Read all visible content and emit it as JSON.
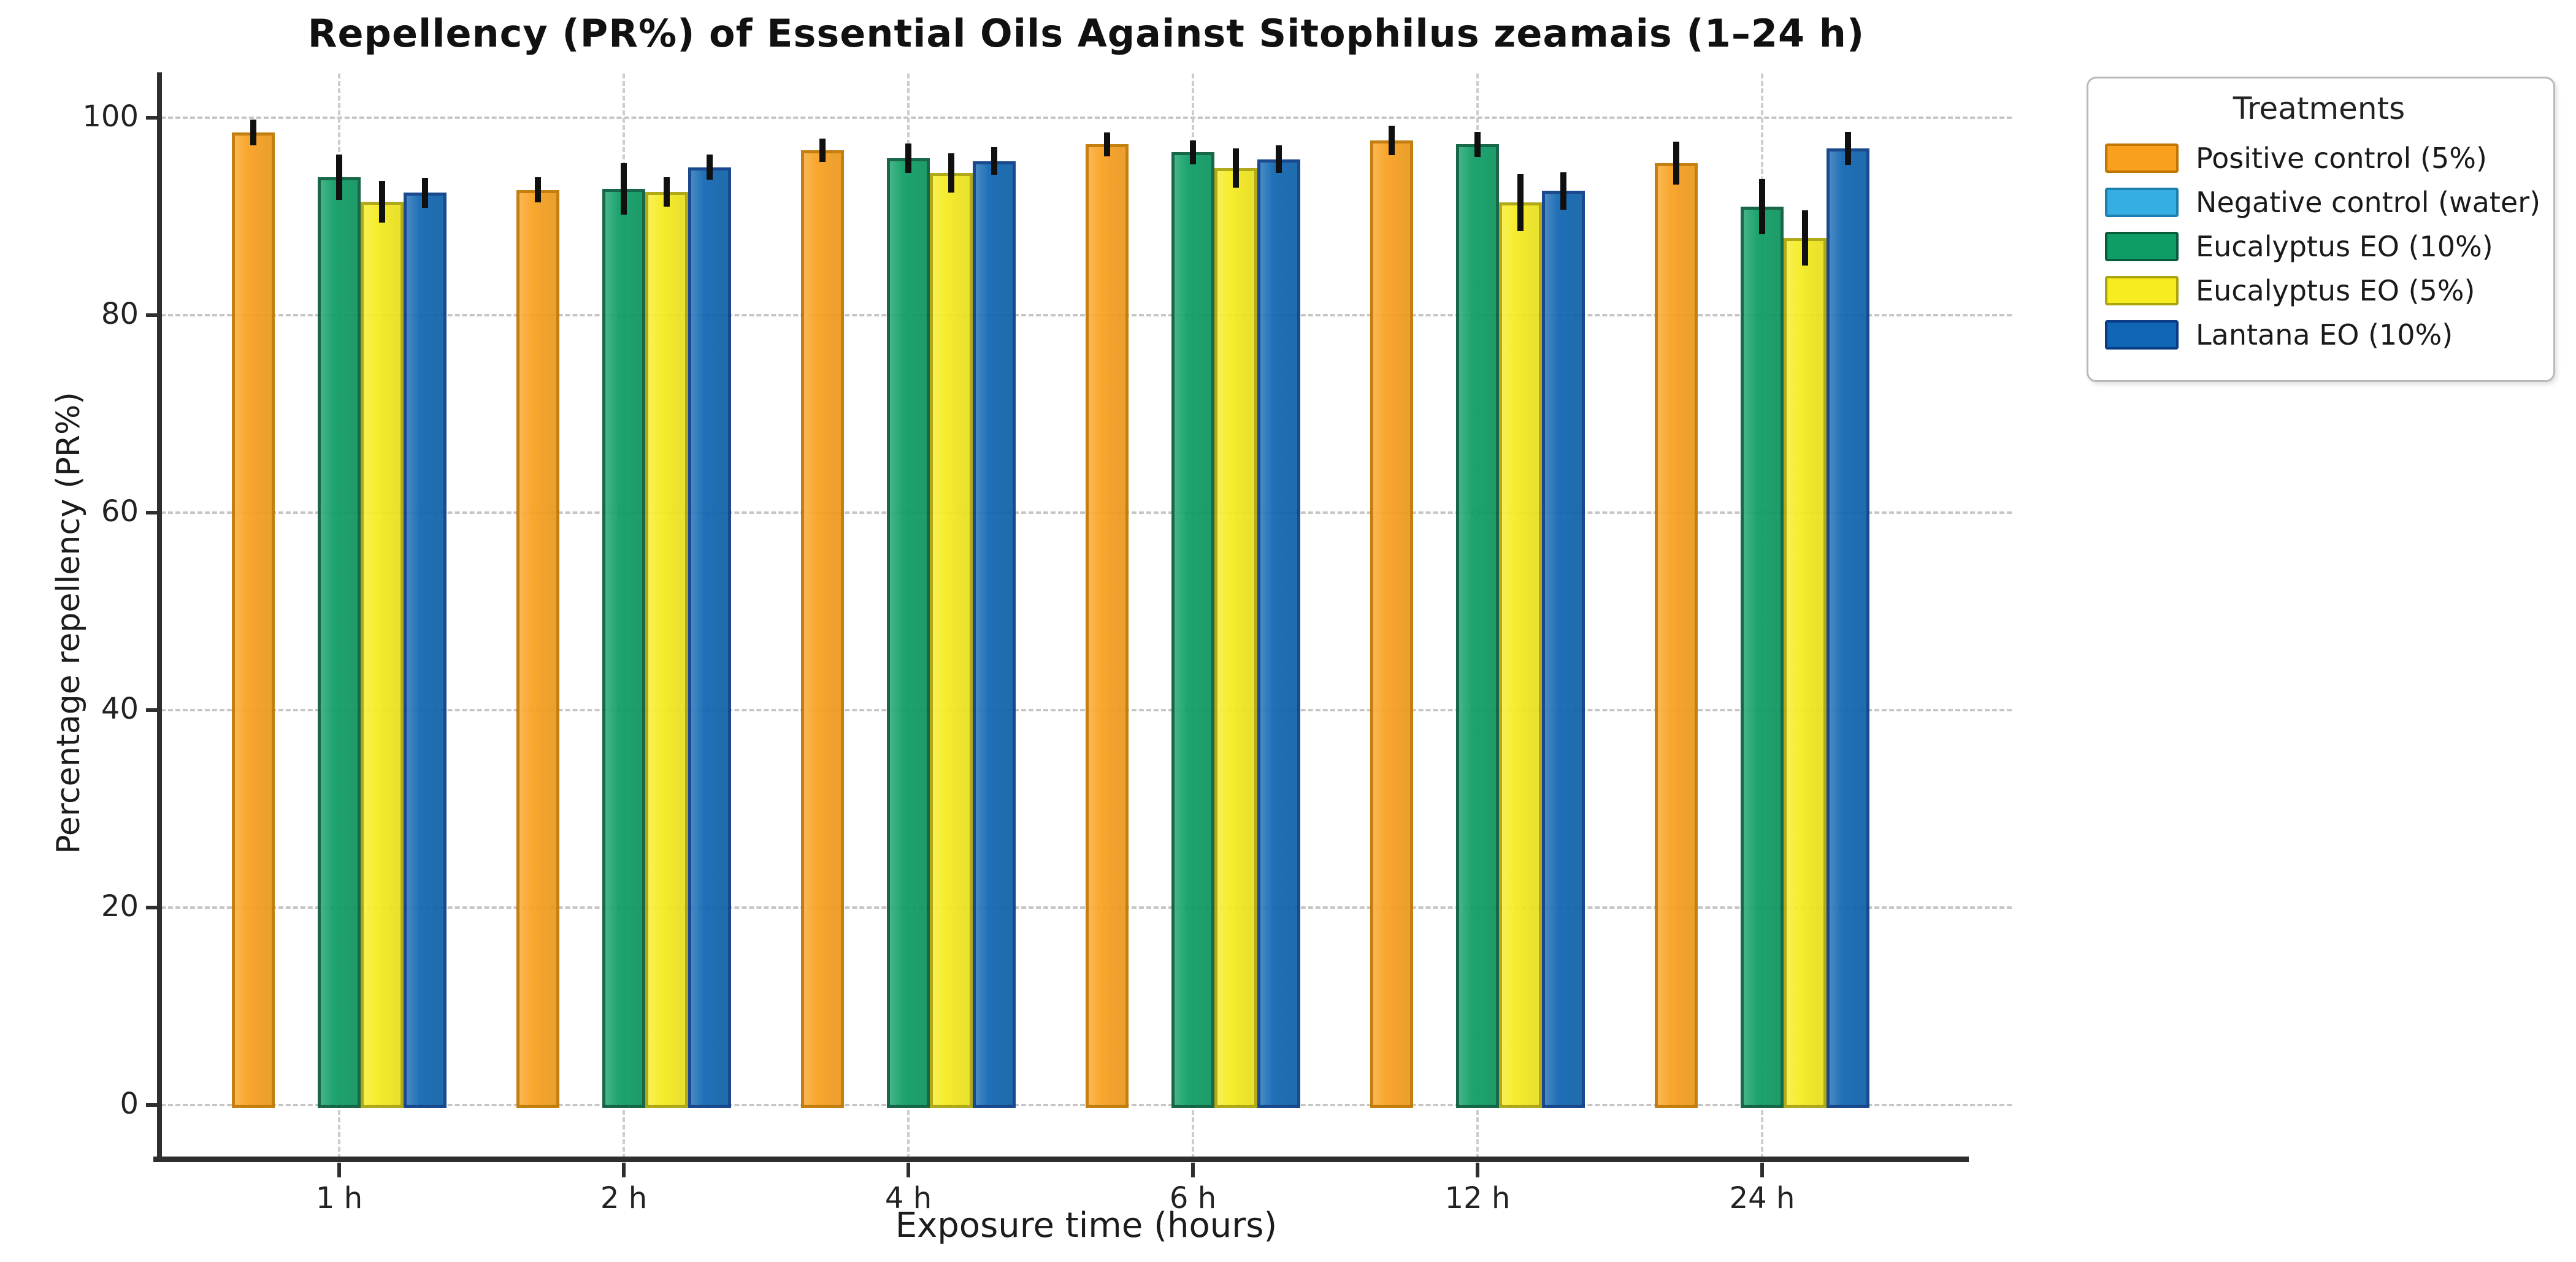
{
  "title": "Repellency (PR%) of Essential Oils Against Sitophilus zeamais (1–24 h)",
  "axes": {
    "x_label": "Exposure time (hours)",
    "y_label": "Percentage repellency (PR%)",
    "y_ticks": [
      0,
      20,
      40,
      60,
      80,
      100
    ],
    "x_tick_labels": [
      "1 h",
      "2 h",
      "4 h",
      "6 h",
      "12 h",
      "24 h"
    ]
  },
  "legend": {
    "title": "Treatments",
    "position": "upper right, outside plot"
  },
  "colors": {
    "grid": "#c6c6c6",
    "spine": "#2e2e2e",
    "error_bar": "#101010",
    "background": "#ffffff"
  },
  "chart_data": {
    "type": "bar",
    "title": "Repellency (PR%) of Essential Oils Against Sitophilus zeamais (1–24 h)",
    "xlabel": "Exposure time (hours)",
    "ylabel": "Percentage repellency (PR%)",
    "categories": [
      "1 h",
      "2 h",
      "4 h",
      "6 h",
      "12 h",
      "24 h"
    ],
    "ylim": [
      -5.5,
      104.5
    ],
    "grid": "dashed horizontal at 0,20,40,60,80,100 and dashed vertical at each category",
    "legend_position": "outside upper right",
    "error_bars": true,
    "series": [
      {
        "name": "Positive control (5%)",
        "fill": "#F9A11F",
        "edge": "#C07600",
        "values": [
          98.5,
          92.7,
          96.7,
          97.3,
          97.7,
          95.4
        ],
        "errors": [
          1.3,
          1.3,
          1.2,
          1.2,
          1.5,
          2.2
        ]
      },
      {
        "name": "Negative control (water)",
        "fill": "#35AEE3",
        "edge": "#1B7FB0",
        "values": [
          0,
          0,
          0,
          0,
          0,
          0
        ],
        "errors": [
          0,
          0,
          0,
          0,
          0,
          0
        ]
      },
      {
        "name": "Eucalyptus EO (10%)",
        "fill": "#0E9E65",
        "edge": "#075C3C",
        "values": [
          94.0,
          92.8,
          95.9,
          96.5,
          97.3,
          91.0
        ],
        "errors": [
          2.3,
          2.6,
          1.5,
          1.2,
          1.3,
          2.8
        ]
      },
      {
        "name": "Eucalyptus EO (5%)",
        "fill": "#F6EC1F",
        "edge": "#ABA40A",
        "values": [
          91.5,
          92.5,
          94.4,
          94.9,
          91.4,
          87.8
        ],
        "errors": [
          2.1,
          1.5,
          2.0,
          2.0,
          2.9,
          2.8
        ]
      },
      {
        "name": "Lantana EO (10%)",
        "fill": "#1066B2",
        "edge": "#093C85",
        "values": [
          92.4,
          95.0,
          95.6,
          95.8,
          92.6,
          96.9
        ],
        "errors": [
          1.5,
          1.3,
          1.4,
          1.4,
          1.9,
          1.7
        ]
      }
    ]
  }
}
